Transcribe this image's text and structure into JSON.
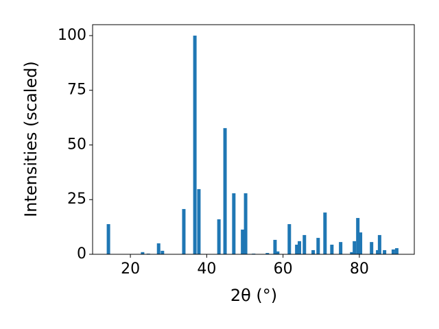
{
  "chart_data": {
    "type": "bar",
    "xlabel": "2θ (°)",
    "ylabel": "Intensities (scaled)",
    "x": [
      14.25,
      23.2,
      24.7,
      27.4,
      28.4,
      34.0,
      36.9,
      37.95,
      43.2,
      44.8,
      47.1,
      49.4,
      50.2,
      52.3,
      55.9,
      57.9,
      58.6,
      61.65,
      63.6,
      64.3,
      65.6,
      67.9,
      69.2,
      71.0,
      72.8,
      75.1,
      78.0,
      78.7,
      79.6,
      80.3,
      83.2,
      84.8,
      85.3,
      86.6,
      88.9,
      89.8
    ],
    "values": [
      13.8,
      1,
      0.3,
      5,
      1.6,
      20.7,
      100,
      29.8,
      16,
      57.7,
      27.9,
      11.3,
      27.9,
      0.3,
      0.6,
      6.6,
      1.3,
      13.8,
      4.4,
      6,
      8.8,
      1.9,
      7.5,
      19.1,
      4.4,
      5.6,
      1,
      6,
      16.6,
      10,
      5.6,
      1.9,
      8.8,
      1.9,
      2.2,
      2.8
    ],
    "color": "#1f77b4",
    "xlim": [
      10.1,
      94.4
    ],
    "xticks": [
      20,
      40,
      60,
      80
    ],
    "ylim": [
      0,
      105
    ],
    "yticks": [
      0,
      25,
      50,
      75,
      100
    ]
  }
}
